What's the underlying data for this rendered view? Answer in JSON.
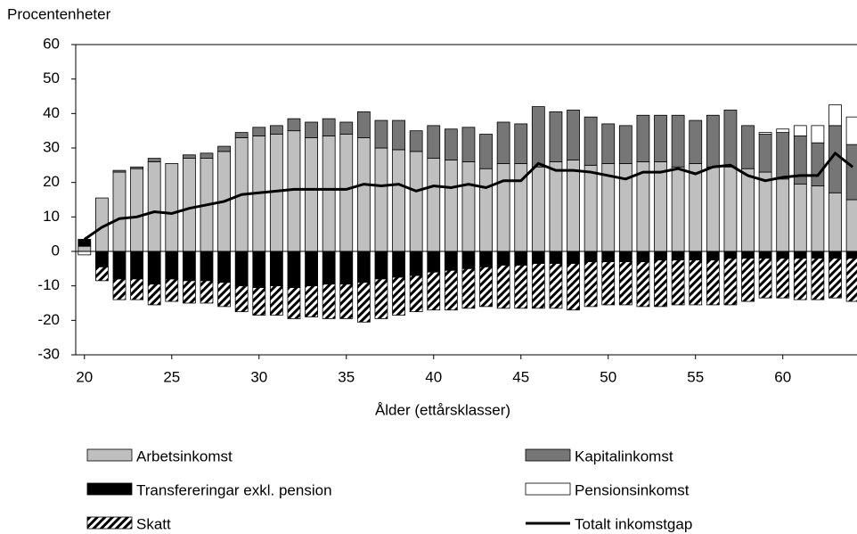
{
  "chart_data": {
    "type": "bar",
    "stacked": true,
    "y_label": "Procentenheter",
    "x_label": "Ålder (ettårsklasser)",
    "x": [
      20,
      21,
      22,
      23,
      24,
      25,
      26,
      27,
      28,
      29,
      30,
      31,
      32,
      33,
      34,
      35,
      36,
      37,
      38,
      39,
      40,
      41,
      42,
      43,
      44,
      45,
      46,
      47,
      48,
      49,
      50,
      51,
      52,
      53,
      54,
      55,
      56,
      57,
      58,
      59,
      60,
      61,
      62,
      63,
      64
    ],
    "xlim": [
      19.5,
      64.25
    ],
    "xticks": [
      20,
      25,
      30,
      35,
      40,
      45,
      50,
      55,
      60
    ],
    "ylim": [
      -30,
      60
    ],
    "yticks": [
      -30,
      -20,
      -10,
      0,
      10,
      20,
      30,
      40,
      50,
      60
    ],
    "grid": false,
    "series": [
      {
        "name": "Arbetsinkomst",
        "color": "#bfbfbf",
        "values": [
          1.5,
          15.5,
          23,
          24,
          26,
          25.5,
          27,
          27,
          29,
          33,
          33.5,
          34,
          35,
          33,
          33.5,
          34,
          33,
          30,
          29.5,
          29,
          27,
          26.5,
          26,
          24,
          25.5,
          25.5,
          24.5,
          26,
          26.5,
          25,
          25.5,
          25.5,
          26,
          26,
          24.5,
          25.5,
          24.5,
          24.5,
          24,
          23,
          21,
          19.5,
          19,
          17,
          15
        ]
      },
      {
        "name": "Kapitalinkomst",
        "color": "#767676",
        "values": [
          0,
          0,
          0.5,
          0.5,
          1,
          0,
          1,
          1.5,
          1.5,
          1.5,
          2.5,
          2.5,
          3.5,
          4.5,
          5,
          3.5,
          7.5,
          8,
          8.5,
          6,
          9.5,
          9,
          10,
          10,
          12,
          11.5,
          17.5,
          14.5,
          14.5,
          14,
          11.5,
          11,
          13.5,
          13.5,
          15,
          12.5,
          15,
          16.5,
          12.5,
          11,
          13.5,
          14,
          12.5,
          19.5,
          16
        ]
      },
      {
        "name": "Pensionsinkomst",
        "color": "#ffffff",
        "values": [
          -1,
          0,
          0,
          0,
          0,
          0,
          0,
          0,
          0,
          0,
          0,
          0,
          0,
          0,
          0,
          0,
          0,
          0,
          0,
          0,
          0,
          0,
          0,
          0,
          0,
          0,
          0,
          0,
          0,
          0,
          0,
          0,
          0,
          0,
          0,
          0,
          0,
          0,
          0,
          0.5,
          1,
          3,
          5,
          6,
          8
        ]
      },
      {
        "name": "Transfereringar exkl. pension",
        "color": "#000000",
        "values": [
          2,
          -4.5,
          -8,
          -8,
          -9.5,
          -8,
          -8.5,
          -8.5,
          -9,
          -10,
          -10.5,
          -10,
          -10.5,
          -10,
          -9.5,
          -9.5,
          -9,
          -8,
          -7.5,
          -7,
          -6,
          -5.5,
          -5,
          -4.5,
          -4,
          -4,
          -3.5,
          -3.5,
          -3.5,
          -3,
          -3,
          -3,
          -3,
          -2.5,
          -2.5,
          -2.5,
          -2.5,
          -2,
          -2,
          -2,
          -2,
          -2,
          -2,
          -2,
          -2
        ]
      },
      {
        "name": "Skatt",
        "color": "#000000",
        "pattern": "diagonal",
        "values": [
          0,
          -4,
          -6,
          -6,
          -6,
          -6.5,
          -6.5,
          -6.5,
          -7,
          -7.5,
          -8,
          -8.5,
          -9,
          -9,
          -10,
          -10,
          -11.5,
          -11.5,
          -11,
          -10.5,
          -11,
          -11.5,
          -11.5,
          -11.5,
          -12.5,
          -12.5,
          -13,
          -13,
          -13.5,
          -13,
          -12.5,
          -12.5,
          -13,
          -13.5,
          -13,
          -13,
          -13,
          -13.5,
          -12.5,
          -11.5,
          -11.5,
          -12,
          -12,
          -11.5,
          -12.5
        ]
      },
      {
        "name": "Totalt inkomstgap",
        "color": "#000000",
        "type": "line",
        "values": [
          3.5,
          7,
          9.5,
          10,
          11.5,
          11,
          12.5,
          13.5,
          14.5,
          16.5,
          17,
          17.5,
          18,
          18,
          18,
          18,
          19.5,
          19,
          19.5,
          17.5,
          19,
          18.5,
          19.5,
          18.5,
          20.5,
          20.5,
          25.5,
          23.5,
          23.5,
          23,
          22,
          21,
          23,
          23,
          24,
          22.5,
          24.5,
          25,
          22,
          20.5,
          21.5,
          22,
          22,
          28.5,
          24.5
        ]
      }
    ]
  }
}
